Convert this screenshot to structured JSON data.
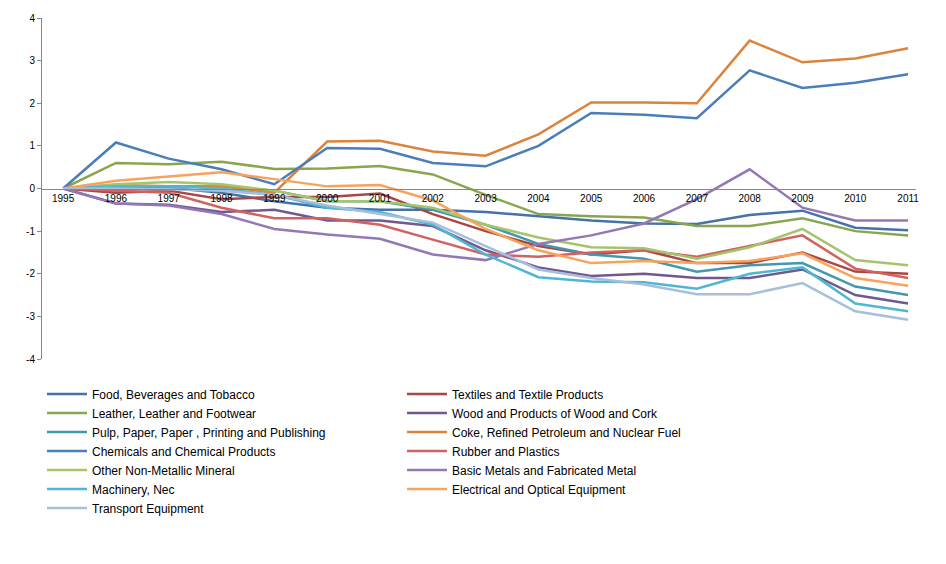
{
  "chart_data": {
    "type": "line",
    "categories": [
      "1995",
      "1996",
      "1997",
      "1998",
      "1999",
      "2000",
      "2001",
      "2002",
      "2003",
      "2004",
      "2005",
      "2006",
      "2007",
      "2008",
      "2009",
      "2010",
      "2011"
    ],
    "ylim": [
      -4,
      4
    ],
    "yticks": [
      -4,
      -3,
      -2,
      -1,
      0,
      1,
      2,
      3,
      4
    ],
    "grid": false,
    "legend": "bottom",
    "series": [
      {
        "name": "Food, Beverages and Tobacco",
        "color": "#4572A7",
        "values": [
          0,
          0.02,
          0.02,
          -0.1,
          -0.3,
          -0.45,
          -0.5,
          -0.5,
          -0.55,
          -0.65,
          -0.75,
          -0.82,
          -0.83,
          -0.62,
          -0.52,
          -0.92,
          -0.98
        ]
      },
      {
        "name": "Textiles and Textile Products",
        "color": "#AA4643",
        "values": [
          0,
          -0.1,
          -0.05,
          -0.25,
          -0.2,
          -0.2,
          -0.12,
          -0.6,
          -1.0,
          -1.35,
          -1.55,
          -1.45,
          -1.75,
          -1.75,
          -1.5,
          -1.95,
          -2.0
        ]
      },
      {
        "name": "Leather, Leather and Footwear",
        "color": "#89A54E",
        "values": [
          0,
          0.6,
          0.57,
          0.63,
          0.46,
          0.47,
          0.53,
          0.33,
          -0.15,
          -0.6,
          -0.65,
          -0.68,
          -0.88,
          -0.88,
          -0.7,
          -1.0,
          -1.1
        ]
      },
      {
        "name": "Wood and Products of Wood and Cork",
        "color": "#71588F",
        "values": [
          0,
          -0.35,
          -0.38,
          -0.55,
          -0.5,
          -0.75,
          -0.75,
          -0.88,
          -1.45,
          -1.85,
          -2.05,
          -2.0,
          -2.1,
          -2.1,
          -1.9,
          -2.5,
          -2.7
        ]
      },
      {
        "name": "Pulp, Paper, Paper , Printing and Publishing",
        "color": "#4198AF",
        "values": [
          0,
          0.05,
          0.05,
          0.05,
          -0.05,
          -0.3,
          -0.3,
          -0.5,
          -0.85,
          -1.3,
          -1.55,
          -1.65,
          -1.95,
          -1.8,
          -1.75,
          -2.3,
          -2.5
        ]
      },
      {
        "name": "Coke, Refined Petroleum and Nuclear Fuel",
        "color": "#DB843D",
        "values": [
          0,
          0.08,
          0.05,
          0.05,
          -0.1,
          1.1,
          1.12,
          0.87,
          0.77,
          1.27,
          2.02,
          2.02,
          2.0,
          3.47,
          2.96,
          3.05,
          3.29
        ]
      },
      {
        "name": "Chemicals and Chemical Products",
        "color": "#4A7EBB",
        "values": [
          0,
          1.08,
          0.7,
          0.45,
          0.1,
          0.95,
          0.93,
          0.6,
          0.52,
          1.0,
          1.77,
          1.73,
          1.65,
          2.77,
          2.36,
          2.48,
          2.68
        ]
      },
      {
        "name": "Rubber and Plastics",
        "color": "#D2625F",
        "values": [
          0,
          -0.05,
          -0.1,
          -0.45,
          -0.7,
          -0.7,
          -0.85,
          -1.2,
          -1.55,
          -1.6,
          -1.5,
          -1.45,
          -1.6,
          -1.35,
          -1.1,
          -1.88,
          -2.1
        ]
      },
      {
        "name": "Other Non-Metallic Mineral",
        "color": "#A5C56B",
        "values": [
          0,
          0.1,
          0.15,
          0.1,
          -0.05,
          -0.3,
          -0.3,
          -0.45,
          -0.85,
          -1.15,
          -1.38,
          -1.4,
          -1.65,
          -1.38,
          -0.95,
          -1.68,
          -1.8
        ]
      },
      {
        "name": "Basic Metals and Fabricated Metal",
        "color": "#9478B5",
        "values": [
          0,
          -0.35,
          -0.4,
          -0.6,
          -0.95,
          -1.08,
          -1.18,
          -1.55,
          -1.68,
          -1.3,
          -1.1,
          -0.82,
          -0.25,
          0.45,
          -0.45,
          -0.75,
          -0.75
        ]
      },
      {
        "name": "Machinery, Nec",
        "color": "#4FB7D3",
        "values": [
          0,
          0.05,
          0.05,
          0.0,
          -0.15,
          -0.45,
          -0.55,
          -0.85,
          -1.55,
          -2.08,
          -2.18,
          -2.2,
          -2.35,
          -2.0,
          -1.85,
          -2.7,
          -2.88
        ]
      },
      {
        "name": "Electrical and Optical Equipment",
        "color": "#F8A35C",
        "values": [
          0,
          0.18,
          0.28,
          0.38,
          0.22,
          0.05,
          0.08,
          -0.28,
          -0.95,
          -1.45,
          -1.75,
          -1.7,
          -1.75,
          -1.7,
          -1.52,
          -2.1,
          -2.28
        ]
      },
      {
        "name": "Transport Equipment",
        "color": "#A7BEDC",
        "values": [
          0,
          0.0,
          -0.02,
          -0.05,
          -0.15,
          -0.4,
          -0.6,
          -0.8,
          -1.35,
          -1.9,
          -2.1,
          -2.25,
          -2.48,
          -2.48,
          -2.22,
          -2.88,
          -3.08
        ]
      }
    ]
  }
}
